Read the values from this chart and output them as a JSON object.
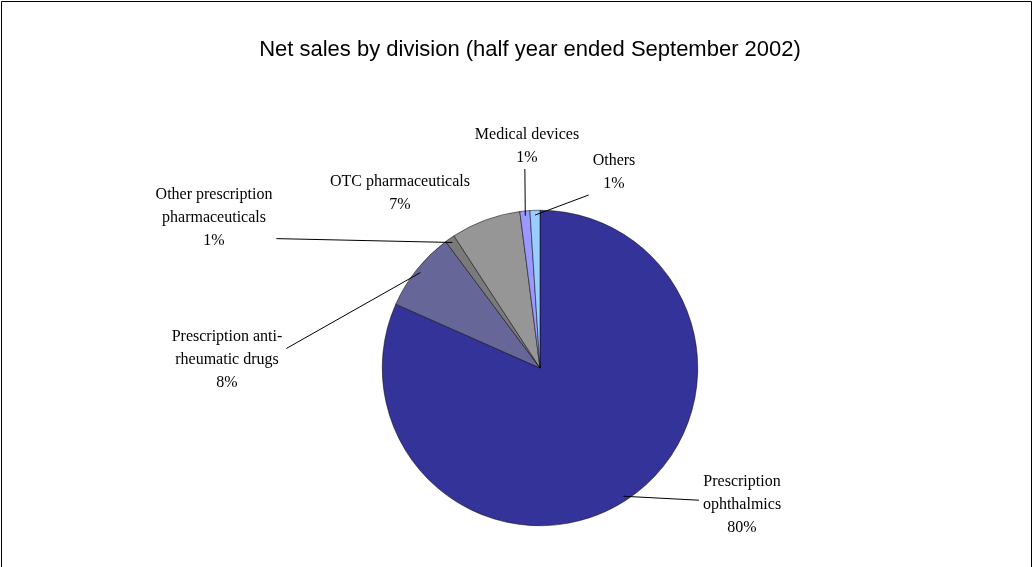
{
  "chart_data": {
    "type": "pie",
    "title": "Net sales by division (half year ended September 2002)",
    "categories": [
      "Prescription ophthalmics",
      "Prescription anti-rheumatic drugs",
      "Other prescription pharmaceuticals",
      "OTC pharmaceuticals",
      "Medical devices",
      "Others"
    ],
    "values": [
      80,
      8,
      1,
      7,
      1,
      1
    ],
    "value_labels": [
      "80%",
      "8%",
      "1%",
      "7%",
      "1%",
      "1%"
    ],
    "colors": [
      "#333399",
      "#666699",
      "#7a7a7a",
      "#969696",
      "#9999ff",
      "#99ccff"
    ],
    "legend": false
  }
}
